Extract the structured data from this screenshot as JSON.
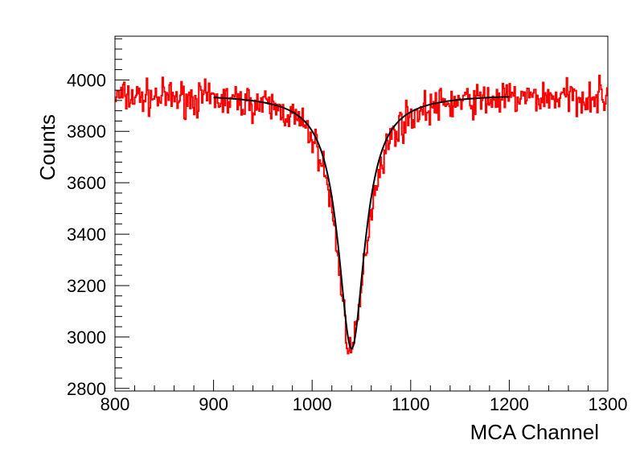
{
  "chart_data": {
    "type": "line",
    "title": "",
    "xlabel": "MCA Channel",
    "ylabel": "Counts",
    "xlim": [
      800,
      1300
    ],
    "ylim": [
      2790,
      4170
    ],
    "x_ticks": [
      800,
      900,
      1000,
      1100,
      1200,
      1300
    ],
    "y_ticks": [
      2800,
      3000,
      3200,
      3400,
      3600,
      3800,
      4000
    ],
    "x_minor_step": 20,
    "y_minor_step": 40,
    "grid": false,
    "legend": "none",
    "series": [
      {
        "style": "histogram",
        "color": "#ff0000",
        "x_start": 800,
        "bin_width": 1,
        "noise_seed": 7,
        "noise_amplitude": 55,
        "profile": {
          "baseline": 3940,
          "dip_center": 1040,
          "dip_depth": 990,
          "dip_hwhm": 18
        },
        "points": [
          [
            800,
            3950
          ],
          [
            806,
            4110
          ],
          [
            820,
            3900
          ],
          [
            850,
            3960
          ],
          [
            880,
            3930
          ],
          [
            900,
            3950
          ],
          [
            950,
            3920
          ],
          [
            980,
            3880
          ],
          [
            1000,
            3800
          ],
          [
            1010,
            3700
          ],
          [
            1020,
            3520
          ],
          [
            1030,
            3100
          ],
          [
            1035,
            2860
          ],
          [
            1040,
            2930
          ],
          [
            1045,
            3050
          ],
          [
            1050,
            3290
          ],
          [
            1060,
            3600
          ],
          [
            1070,
            3740
          ],
          [
            1080,
            3820
          ],
          [
            1100,
            3900
          ],
          [
            1150,
            3930
          ],
          [
            1200,
            3960
          ],
          [
            1250,
            3950
          ],
          [
            1300,
            3950
          ]
        ]
      },
      {
        "style": "fit",
        "color": "#000000",
        "x_range": [
          900,
          1200
        ],
        "model": "lorentzian",
        "baseline": 3945,
        "center": 1040,
        "depth": 990,
        "hwhm": 16.5
      }
    ]
  }
}
